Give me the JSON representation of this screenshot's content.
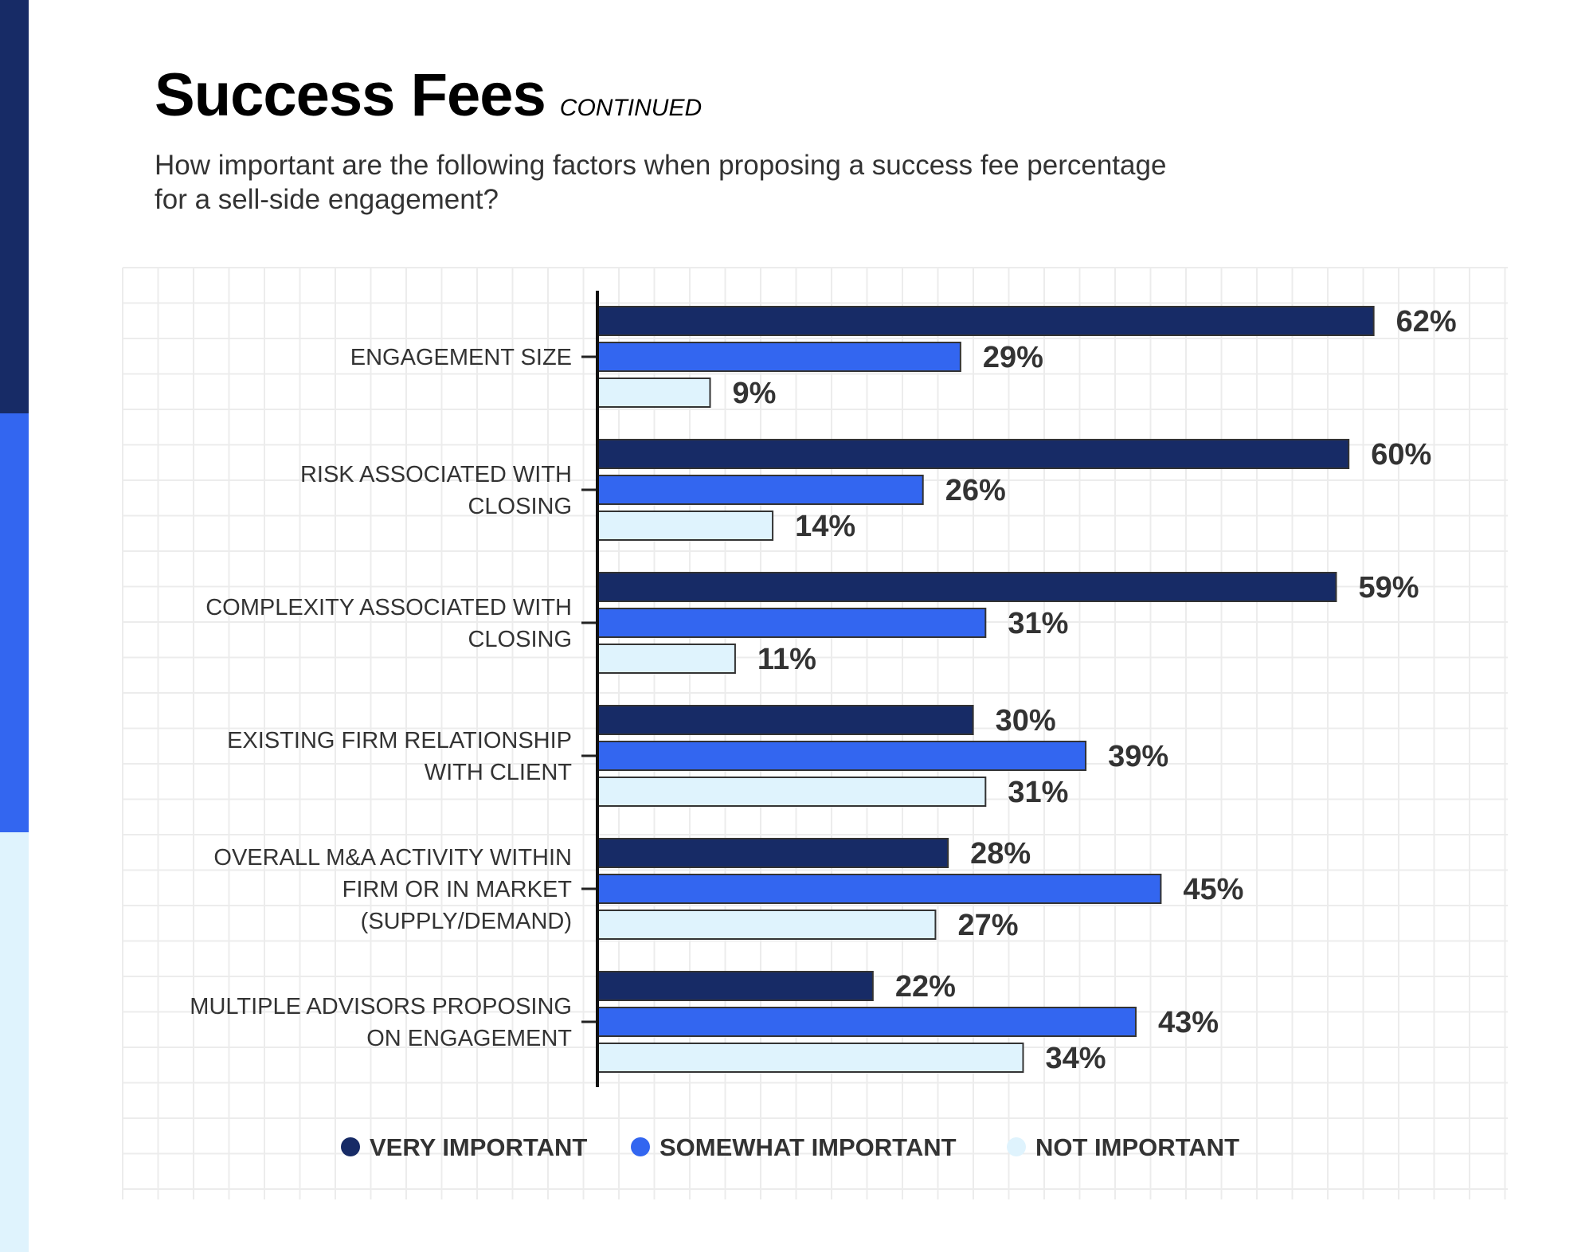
{
  "title": "Success Fees",
  "title_suffix": "CONTINUED",
  "subtitle": "How important are the following factors when proposing a success fee percentage for a sell-side engagement?",
  "colors": {
    "very": "#172b66",
    "somewhat": "#3366f0",
    "not": "#dff3fd",
    "stripe_dark": "#172b66",
    "stripe_blue": "#3366f0",
    "stripe_light": "#dff3fd"
  },
  "chart_data": {
    "type": "bar",
    "orientation": "horizontal",
    "categories": [
      [
        "ENGAGEMENT SIZE"
      ],
      [
        "RISK ASSOCIATED WITH",
        "CLOSING"
      ],
      [
        "COMPLEXITY ASSOCIATED WITH",
        "CLOSING"
      ],
      [
        "EXISTING FIRM RELATIONSHIP",
        "WITH CLIENT"
      ],
      [
        "OVERALL M&A ACTIVITY WITHIN",
        "FIRM OR IN MARKET",
        "(SUPPLY/DEMAND)"
      ],
      [
        "MULTIPLE ADVISORS PROPOSING",
        "ON ENGAGEMENT"
      ]
    ],
    "series": [
      {
        "name": "VERY IMPORTANT",
        "values": [
          62,
          60,
          59,
          30,
          28,
          22
        ]
      },
      {
        "name": "SOMEWHAT IMPORTANT",
        "values": [
          29,
          26,
          31,
          39,
          45,
          43
        ]
      },
      {
        "name": "NOT IMPORTANT",
        "values": [
          9,
          14,
          11,
          31,
          27,
          34
        ]
      }
    ],
    "value_suffix": "%",
    "grid": true,
    "legend": "bottom"
  }
}
